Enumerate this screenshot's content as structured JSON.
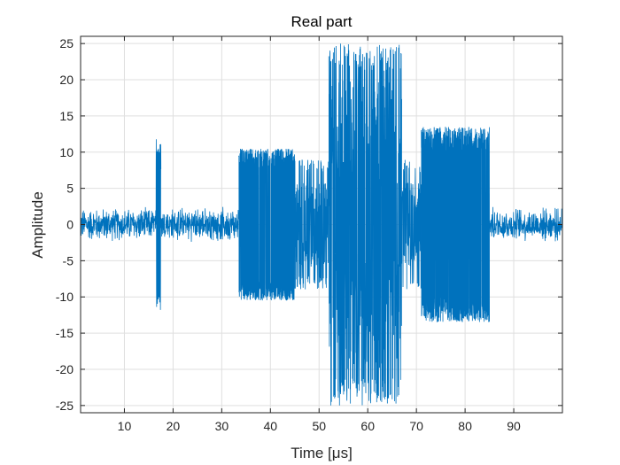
{
  "chart_data": {
    "type": "line",
    "title": "Real part",
    "xlabel": "Time [",
    "xlabel_symbol": "μ",
    "xlabel_unit": "s]",
    "ylabel": "Amplitude",
    "xlim": [
      1,
      100
    ],
    "ylim": [
      -26,
      26
    ],
    "xticks": [
      10,
      20,
      30,
      40,
      50,
      60,
      70,
      80,
      90
    ],
    "xtick_labels": [
      "10",
      "20",
      "30",
      "40",
      "50",
      "60",
      "70",
      "80",
      "90"
    ],
    "yticks": [
      -25,
      -20,
      -15,
      -10,
      -5,
      0,
      5,
      10,
      15,
      20,
      25
    ],
    "ytick_labels": [
      "-25",
      "-20",
      "-15",
      "-10",
      "-5",
      "0",
      "5",
      "10",
      "15",
      "20",
      "25"
    ],
    "grid": true,
    "series_color": "#0072BD",
    "segments": [
      {
        "x_start": 1,
        "x_end": 16.5,
        "amplitude": 2.5,
        "kind": "noise"
      },
      {
        "x_start": 16.5,
        "x_end": 17.5,
        "amplitude": 12,
        "kind": "burst"
      },
      {
        "x_start": 17.5,
        "x_end": 33.5,
        "amplitude": 2.5,
        "kind": "noise"
      },
      {
        "x_start": 33.5,
        "x_end": 45,
        "amplitude": 10.5,
        "kind": "dense"
      },
      {
        "x_start": 45,
        "x_end": 52,
        "amplitude": 9,
        "kind": "sparse"
      },
      {
        "x_start": 52,
        "x_end": 67,
        "amplitude": 25,
        "kind": "sparse-large"
      },
      {
        "x_start": 67,
        "x_end": 71,
        "amplitude": 9,
        "kind": "sparse"
      },
      {
        "x_start": 71,
        "x_end": 85,
        "amplitude": 13.5,
        "kind": "dense"
      },
      {
        "x_start": 85,
        "x_end": 100,
        "amplitude": 2.5,
        "kind": "noise"
      }
    ]
  }
}
